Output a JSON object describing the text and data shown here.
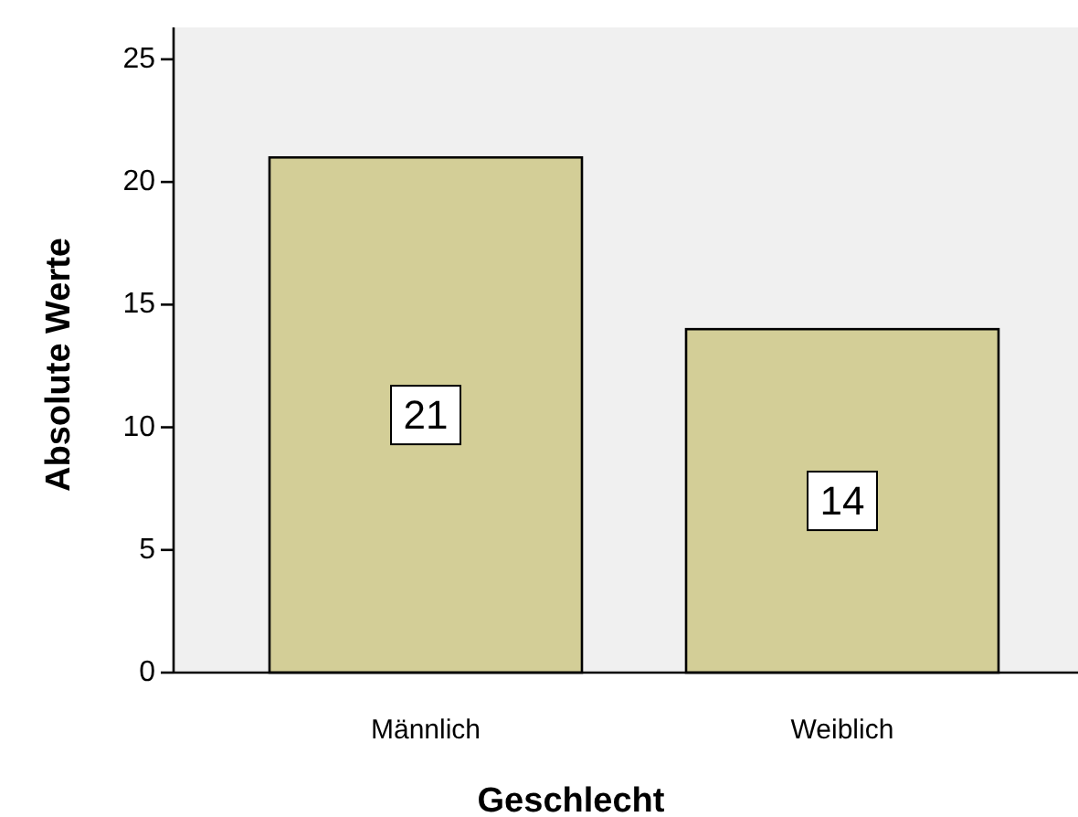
{
  "chart_data": {
    "type": "bar",
    "xlabel": "Geschlecht",
    "ylabel": "Absolute Werte",
    "categories": [
      "Männlich",
      "Weiblich"
    ],
    "values": [
      21,
      14
    ],
    "color": "#d3ce97",
    "ylim": [
      0,
      26.3
    ],
    "yticks": [
      0,
      5,
      10,
      15,
      20,
      25
    ],
    "grid": false,
    "data_labels": true
  }
}
